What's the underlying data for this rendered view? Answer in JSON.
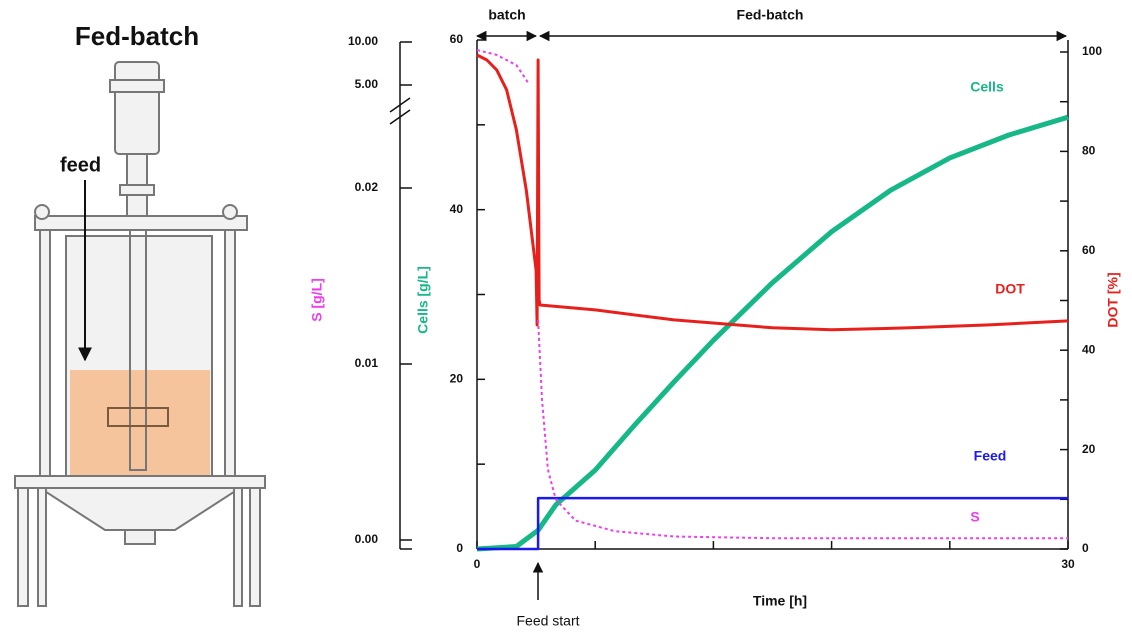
{
  "illustration": {
    "title": "Fed-batch",
    "label": "feed"
  },
  "chart_data": {
    "type": "line",
    "xlabel": "Time [h]",
    "ylabel": "Cells [g/L]",
    "y2label": "DOT [%]",
    "slabel": "S [g/L]",
    "phases": [
      "batch",
      "Fed-batch"
    ],
    "annotation": "Feed start",
    "xlim": [
      0,
      30
    ],
    "xticks": [
      0,
      30
    ],
    "xminor": [
      6,
      12,
      18,
      24
    ],
    "ylim": [
      0,
      60
    ],
    "yticks": [
      0,
      20,
      40,
      60
    ],
    "yminor": [
      10,
      30,
      50
    ],
    "y2lim": [
      0,
      100
    ],
    "y2ticks": [
      0,
      20,
      40,
      60,
      80,
      100
    ],
    "y2minor": [
      10,
      30,
      50,
      70,
      90
    ],
    "s_ylim": [
      0,
      10
    ],
    "s_break": [
      0.02,
      5
    ],
    "s_ticks": [
      {
        "value": 0,
        "label": "0.00"
      },
      {
        "value": 0.01,
        "label": "0.01"
      },
      {
        "value": 0.02,
        "label": "0.02"
      },
      {
        "value": 5,
        "label": "5.00"
      },
      {
        "value": 10,
        "label": "10.00"
      }
    ],
    "series": [
      {
        "name": "Cells",
        "color": "#17b888",
        "axis": "y",
        "x": [
          0,
          2,
          3.1,
          4,
          6,
          8,
          10,
          12,
          15,
          18,
          21,
          24,
          27,
          30
        ],
        "values": [
          0,
          0.3,
          2.2,
          5.2,
          9.3,
          14.6,
          19.7,
          24.6,
          31.4,
          37.4,
          42.3,
          46.1,
          48.8,
          50.9
        ]
      },
      {
        "name": "DOT",
        "color": "#e8201c",
        "axis": "y2",
        "x": [
          0,
          0.5,
          1,
          1.5,
          2,
          2.5,
          3,
          3.05,
          3.1,
          3.15,
          3.2,
          6,
          10,
          15,
          18,
          22,
          26,
          30
        ],
        "values": [
          99.4,
          98.4,
          96.4,
          92.4,
          84.3,
          72.2,
          56.1,
          45.1,
          98.4,
          50.1,
          49.1,
          48.1,
          46.1,
          44.5,
          44.1,
          44.5,
          45.1,
          45.9
        ]
      },
      {
        "name": "Feed",
        "color": "#1a1af0",
        "axis": "y",
        "x": [
          0,
          3.1,
          3.1,
          30
        ],
        "values": [
          0,
          0,
          6,
          6
        ]
      },
      {
        "name": "S",
        "color": "#f03cf0",
        "axis": "s",
        "x": [
          0,
          1,
          2,
          2.5,
          2.6,
          2.8,
          3.1,
          3.3,
          3.6,
          4,
          5,
          7,
          10,
          15,
          30
        ],
        "values": [
          9.07,
          8.5,
          7.3,
          5.6,
          5.2,
          null,
          0.0125,
          0.008,
          0.004,
          0.0023,
          0.0011,
          0.0005,
          0.0002,
          0.0001,
          0.0001
        ]
      }
    ]
  }
}
